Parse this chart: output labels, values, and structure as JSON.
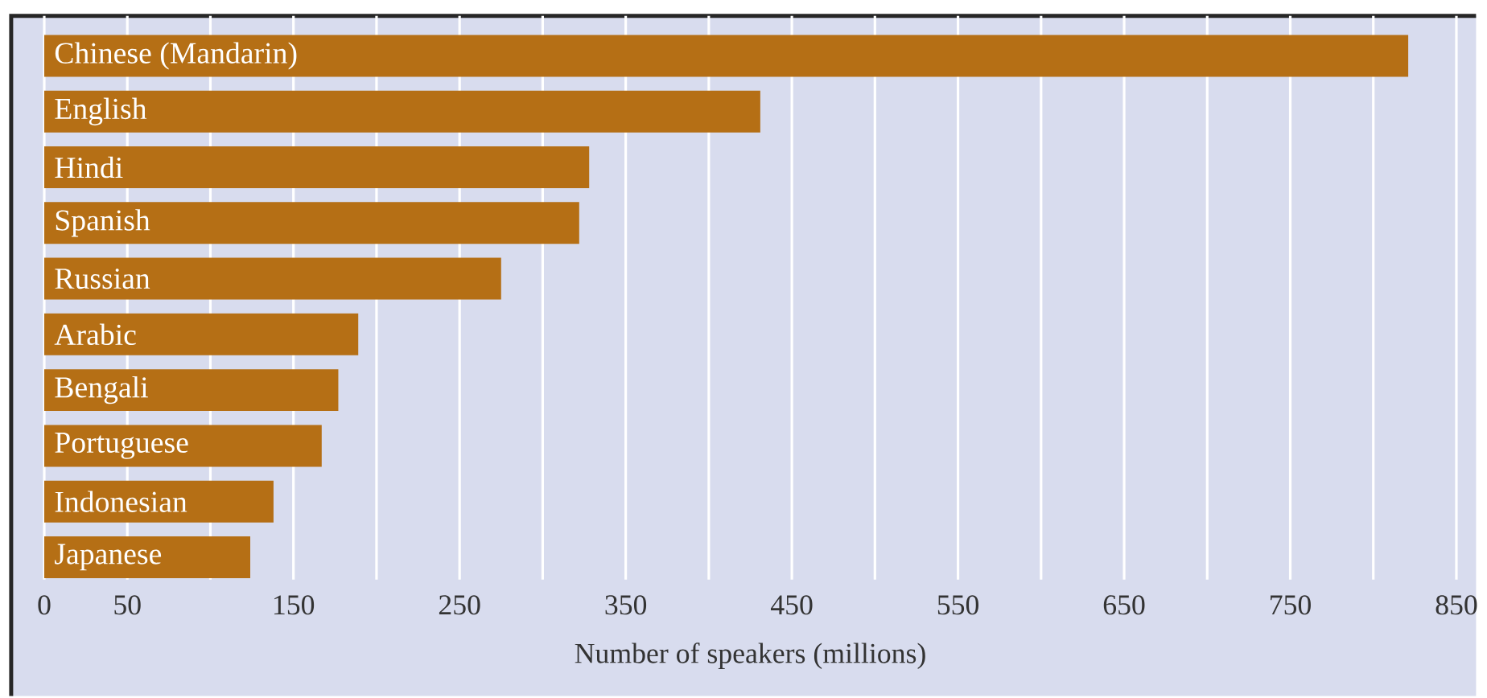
{
  "chart_data": {
    "type": "bar",
    "orientation": "horizontal",
    "xlabel": "Number of speakers (millions)",
    "categories": [
      "Chinese (Mandarin)",
      "English",
      "Hindi",
      "Spanish",
      "Russian",
      "Arabic",
      "Bengali",
      "Portuguese",
      "Indonesian",
      "Japanese"
    ],
    "values": [
      821,
      431,
      328,
      322,
      275,
      189,
      177,
      167,
      138,
      124
    ],
    "color": "#b56f15",
    "xlim": [
      0,
      850
    ],
    "xticks": [
      0,
      50,
      {
        "value": 100,
        "label": null
      },
      150,
      {
        "value": 200,
        "label": null
      },
      250,
      {
        "value": 300,
        "label": null
      },
      350,
      {
        "value": 400,
        "label": null
      },
      450,
      {
        "value": 500,
        "label": null
      },
      550,
      {
        "value": 600,
        "label": null
      },
      650,
      {
        "value": 700,
        "label": null
      },
      750,
      {
        "value": 800,
        "label": null
      },
      850
    ],
    "grid": "x"
  }
}
